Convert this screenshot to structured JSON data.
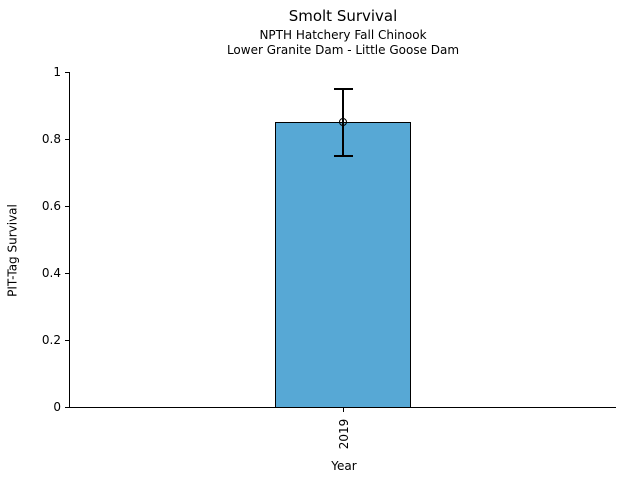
{
  "chart_data": {
    "type": "bar",
    "title": "Smolt Survival",
    "subtitle_line1": "NPTH Hatchery Fall Chinook",
    "subtitle_line2": "Lower Granite Dam - Little Goose Dam",
    "xlabel": "Year",
    "ylabel": "PIT-Tag Survival",
    "categories": [
      "2019"
    ],
    "values": [
      0.85
    ],
    "error_low": [
      0.75
    ],
    "error_high": [
      0.95
    ],
    "ylim": [
      0,
      1
    ],
    "yticks": [
      "0",
      "0.2",
      "0.4",
      "0.6",
      "0.8",
      "1"
    ],
    "grid": false,
    "legend": "none",
    "marker": "open-circle",
    "bar_color": "#57a8d5",
    "edge_color": "#000000",
    "background_color": "#ffffff"
  }
}
